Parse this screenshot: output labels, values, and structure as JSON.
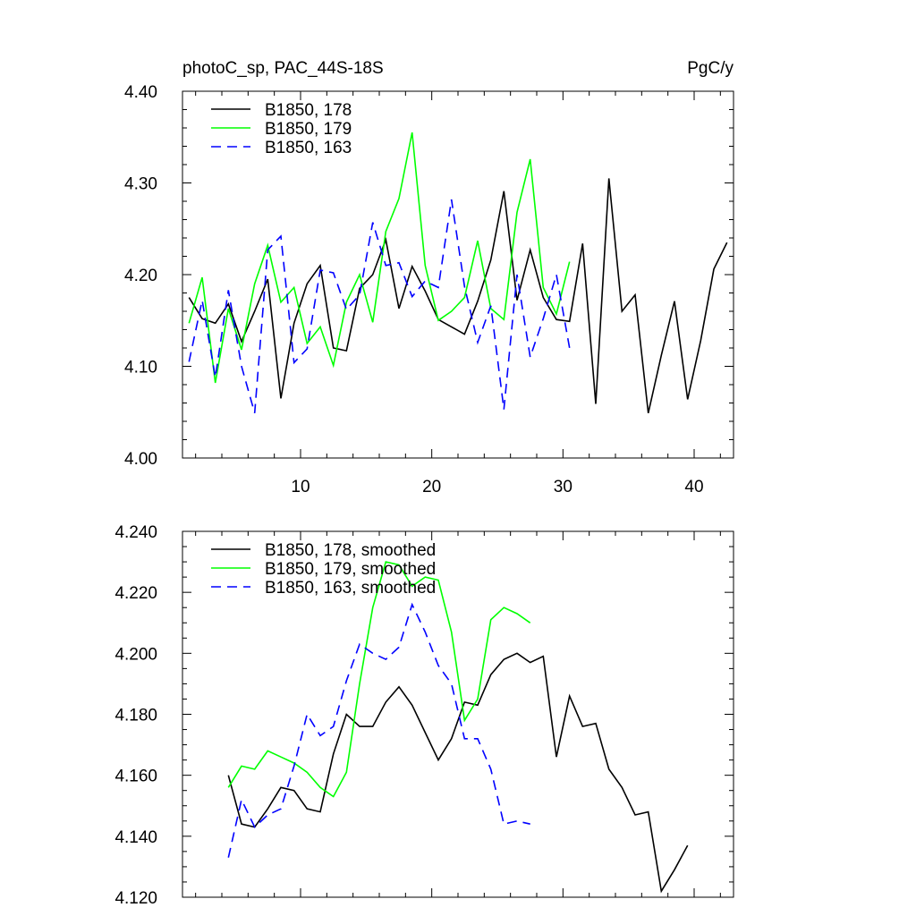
{
  "header": {
    "title": "photoC_sp, PAC_44S-18S",
    "units": "PgC/y"
  },
  "chart_data": [
    {
      "type": "line",
      "title": "photoC_sp, PAC_44S-18S",
      "units_label": "PgC/y",
      "xlabel": "",
      "ylabel": "",
      "xlim": [
        1,
        43
      ],
      "ylim": [
        4.0,
        4.4
      ],
      "xticks": [
        10,
        20,
        30,
        40
      ],
      "yticks": [
        4.0,
        4.1,
        4.2,
        4.3,
        4.4
      ],
      "ytick_labels": [
        "4.00",
        "4.10",
        "4.20",
        "4.30",
        "4.40"
      ],
      "legend_position": "top-left",
      "series": [
        {
          "name": "B1850, 178",
          "color": "#000000",
          "dash": "solid",
          "x": [
            1.5,
            2.5,
            3.5,
            4.5,
            5.5,
            6.5,
            7.5,
            8.5,
            9.5,
            10.5,
            11.5,
            12.5,
            13.5,
            14.5,
            15.5,
            16.5,
            17.5,
            18.5,
            19.5,
            20.5,
            21.5,
            22.5,
            23.5,
            24.5,
            25.5,
            26.5,
            27.5,
            28.5,
            29.5,
            30.5,
            31.5,
            32.5,
            33.5,
            34.5,
            35.5,
            36.5,
            37.5,
            38.5,
            39.5,
            40.5,
            41.5,
            42.5
          ],
          "values": [
            4.175,
            4.152,
            4.147,
            4.168,
            4.127,
            4.16,
            4.195,
            4.065,
            4.147,
            4.19,
            4.21,
            4.12,
            4.117,
            4.185,
            4.2,
            4.238,
            4.163,
            4.209,
            4.182,
            4.151,
            4.143,
            4.135,
            4.171,
            4.216,
            4.291,
            4.172,
            4.227,
            4.175,
            4.151,
            4.149,
            4.234,
            4.059,
            4.305,
            4.16,
            4.178,
            4.049,
            4.112,
            4.171,
            4.064,
            4.128,
            4.206,
            4.235
          ]
        },
        {
          "name": "B1850, 179",
          "color": "#00ff00",
          "dash": "solid",
          "x": [
            1.5,
            2.5,
            3.5,
            4.5,
            5.5,
            6.5,
            7.5,
            8.5,
            9.5,
            10.5,
            11.5,
            12.5,
            13.5,
            14.5,
            15.5,
            16.5,
            17.5,
            18.5,
            19.5,
            20.5,
            21.5,
            22.5,
            23.5,
            24.5,
            25.5,
            26.5,
            27.5,
            28.5,
            29.5,
            30.5
          ],
          "values": [
            4.147,
            4.197,
            4.082,
            4.163,
            4.118,
            4.19,
            4.232,
            4.17,
            4.186,
            4.125,
            4.143,
            4.101,
            4.17,
            4.2,
            4.148,
            4.247,
            4.283,
            4.355,
            4.21,
            4.15,
            4.16,
            4.175,
            4.237,
            4.163,
            4.151,
            4.268,
            4.326,
            4.186,
            4.157,
            4.214
          ]
        },
        {
          "name": "B1850, 163",
          "color": "#0000ff",
          "dash": "dashed",
          "x": [
            1.5,
            2.5,
            3.5,
            4.5,
            5.5,
            6.5,
            7.5,
            8.5,
            9.5,
            10.5,
            11.5,
            12.5,
            13.5,
            14.5,
            15.5,
            16.5,
            17.5,
            18.5,
            19.5,
            20.5,
            21.5,
            22.5,
            23.5,
            24.5,
            25.5,
            26.5,
            27.5,
            28.5,
            29.5,
            30.5
          ],
          "values": [
            4.105,
            4.172,
            4.088,
            4.183,
            4.1,
            4.049,
            4.227,
            4.242,
            4.104,
            4.119,
            4.205,
            4.202,
            4.162,
            4.178,
            4.257,
            4.21,
            4.213,
            4.176,
            4.193,
            4.186,
            4.282,
            4.187,
            4.126,
            4.166,
            4.053,
            4.2,
            4.11,
            4.152,
            4.2,
            4.12
          ]
        }
      ]
    },
    {
      "type": "line",
      "title": "",
      "xlabel": "",
      "ylabel": "",
      "xlim": [
        1,
        43
      ],
      "ylim": [
        4.12,
        4.24
      ],
      "xticks": [
        10,
        20,
        30,
        40
      ],
      "yticks": [
        4.12,
        4.14,
        4.16,
        4.18,
        4.2,
        4.22,
        4.24
      ],
      "ytick_labels": [
        "4.120",
        "4.140",
        "4.160",
        "4.180",
        "4.200",
        "4.220",
        "4.240"
      ],
      "legend_position": "top-left",
      "series": [
        {
          "name": "B1850, 178, smoothed",
          "color": "#000000",
          "dash": "solid",
          "x": [
            4.5,
            5.5,
            6.5,
            7.5,
            8.5,
            9.5,
            10.5,
            11.5,
            12.5,
            13.5,
            14.5,
            15.5,
            16.5,
            17.5,
            18.5,
            19.5,
            20.5,
            21.5,
            22.5,
            23.5,
            24.5,
            25.5,
            26.5,
            27.5,
            28.5,
            29.5,
            30.5,
            31.5,
            32.5,
            33.5,
            34.5,
            35.5,
            36.5,
            37.5,
            38.5,
            39.5
          ],
          "values": [
            4.16,
            4.144,
            4.143,
            4.149,
            4.156,
            4.155,
            4.149,
            4.148,
            4.167,
            4.18,
            4.176,
            4.176,
            4.184,
            4.189,
            4.183,
            4.174,
            4.165,
            4.172,
            4.184,
            4.183,
            4.193,
            4.198,
            4.2,
            4.197,
            4.199,
            4.166,
            4.186,
            4.176,
            4.177,
            4.162,
            4.156,
            4.147,
            4.148,
            4.122,
            4.129,
            4.137
          ]
        },
        {
          "name": "B1850, 179, smoothed",
          "color": "#00ff00",
          "dash": "solid",
          "x": [
            4.5,
            5.5,
            6.5,
            7.5,
            8.5,
            9.5,
            10.5,
            11.5,
            12.5,
            13.5,
            14.5,
            15.5,
            16.5,
            17.5,
            18.5,
            19.5,
            20.5,
            21.5,
            22.5,
            23.5,
            24.5,
            25.5,
            26.5,
            27.5
          ],
          "values": [
            4.156,
            4.163,
            4.162,
            4.168,
            4.166,
            4.164,
            4.161,
            4.156,
            4.153,
            4.161,
            4.19,
            4.215,
            4.23,
            4.229,
            4.222,
            4.225,
            4.224,
            4.207,
            4.178,
            4.185,
            4.211,
            4.215,
            4.213,
            4.21
          ]
        },
        {
          "name": "B1850, 163, smoothed",
          "color": "#0000ff",
          "dash": "dashed",
          "x": [
            4.5,
            5.5,
            6.5,
            7.5,
            8.5,
            9.5,
            10.5,
            11.5,
            12.5,
            13.5,
            14.5,
            15.5,
            16.5,
            17.5,
            18.5,
            19.5,
            20.5,
            21.5,
            22.5,
            23.5,
            24.5,
            25.5,
            26.5,
            27.5
          ],
          "values": [
            4.133,
            4.152,
            4.143,
            4.147,
            4.149,
            4.163,
            4.18,
            4.173,
            4.176,
            4.191,
            4.203,
            4.2,
            4.198,
            4.202,
            4.216,
            4.207,
            4.196,
            4.19,
            4.172,
            4.172,
            4.162,
            4.144,
            4.145,
            4.144
          ]
        }
      ]
    }
  ]
}
